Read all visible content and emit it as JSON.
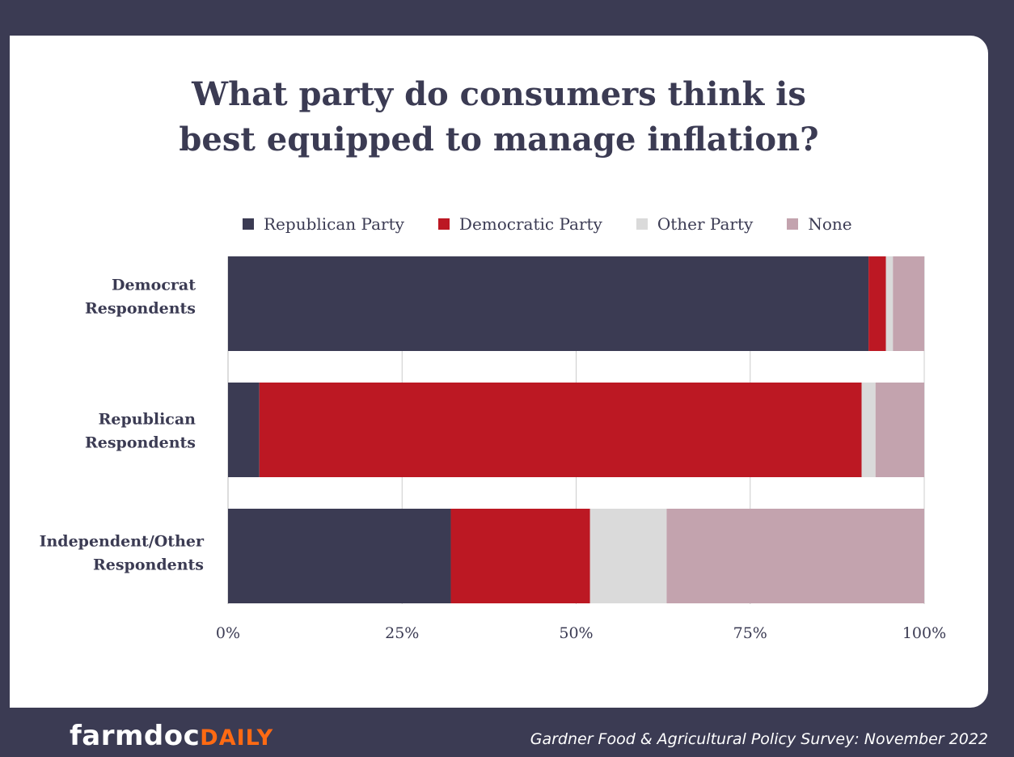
{
  "title_lines": [
    "What party do consumers think is",
    "best equipped to manage inflation?"
  ],
  "footer": {
    "logo_part1": "farmdoc",
    "logo_part2": "DAILY",
    "source": "Gardner Food & Agricultural Policy Survey: November 2022"
  },
  "colors": {
    "background_dark": "#3b3b53",
    "republican": "#3b3b53",
    "democratic": "#bc1823",
    "other": "#dadada",
    "none": "#c3a3ae",
    "logo_accent": "#ff6a13"
  },
  "chart_data": {
    "type": "bar",
    "orientation": "horizontal",
    "stacked": true,
    "title": "What party do consumers think is best equipped to manage inflation?",
    "categories": [
      [
        "Democrat",
        "Respondents"
      ],
      [
        "Republican",
        "Respondents"
      ],
      [
        "Independent/Other",
        "Respondents"
      ]
    ],
    "series": [
      {
        "name": "Republican Party",
        "color": "#3b3b53",
        "values": [
          92,
          4.5,
          32
        ]
      },
      {
        "name": "Democratic Party",
        "color": "#bc1823",
        "values": [
          2.5,
          86.5,
          20
        ]
      },
      {
        "name": "Other Party",
        "color": "#dadada",
        "values": [
          1,
          2,
          11
        ]
      },
      {
        "name": "None",
        "color": "#c3a3ae",
        "values": [
          4.5,
          7,
          37
        ]
      }
    ],
    "x_ticks": [
      0,
      25,
      50,
      75,
      100
    ],
    "x_tick_labels": [
      "0%",
      "25%",
      "50%",
      "75%",
      "100%"
    ],
    "xlim": [
      0,
      100
    ],
    "grid": true,
    "legend_position": "top"
  }
}
